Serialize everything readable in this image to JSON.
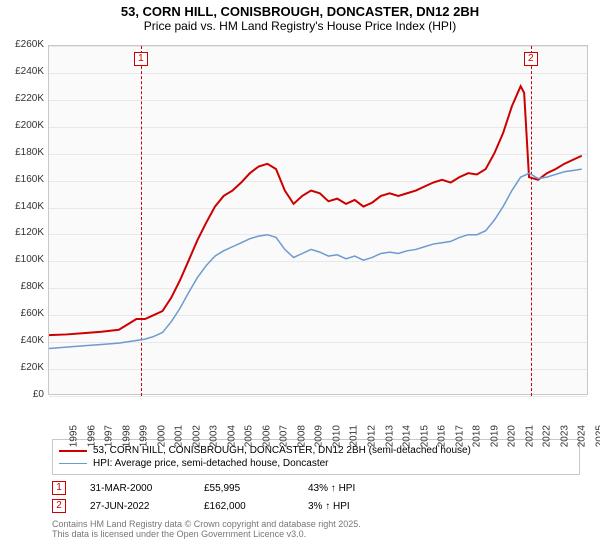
{
  "title": "53, CORN HILL, CONISBROUGH, DONCASTER, DN12 2BH",
  "subtitle": "Price paid vs. HM Land Registry's House Price Index (HPI)",
  "chart": {
    "type": "line",
    "background_color": "#fafafa",
    "grid_color": "#e8e8e8",
    "border_color": "#c8c8c8",
    "title_fontsize": 13,
    "label_fontsize": 10,
    "ylim": [
      0,
      260000
    ],
    "ytick_step": 20000,
    "yticks": [
      "£0",
      "£20K",
      "£40K",
      "£60K",
      "£80K",
      "£100K",
      "£120K",
      "£140K",
      "£160K",
      "£180K",
      "£200K",
      "£220K",
      "£240K",
      "£260K"
    ],
    "xlim": [
      1995,
      2025.8
    ],
    "xticks": [
      1995,
      1996,
      1997,
      1998,
      1999,
      2000,
      2001,
      2002,
      2003,
      2004,
      2005,
      2006,
      2007,
      2008,
      2009,
      2010,
      2011,
      2012,
      2013,
      2014,
      2015,
      2016,
      2017,
      2018,
      2019,
      2020,
      2021,
      2022,
      2023,
      2024,
      2025
    ],
    "series": [
      {
        "name": "53, CORN HILL, CONISBROUGH, DONCASTER, DN12 2BH (semi-detached house)",
        "color": "#cc0000",
        "line_width": 2,
        "points": [
          [
            1995,
            44000
          ],
          [
            1996,
            44500
          ],
          [
            1997,
            45500
          ],
          [
            1998,
            46500
          ],
          [
            1999,
            48000
          ],
          [
            2000,
            55995
          ],
          [
            2000.5,
            56000
          ],
          [
            2001,
            59000
          ],
          [
            2001.5,
            62000
          ],
          [
            2002,
            72000
          ],
          [
            2002.5,
            85000
          ],
          [
            2003,
            100000
          ],
          [
            2003.5,
            115000
          ],
          [
            2004,
            128000
          ],
          [
            2004.5,
            140000
          ],
          [
            2005,
            148000
          ],
          [
            2005.5,
            152000
          ],
          [
            2006,
            158000
          ],
          [
            2006.5,
            165000
          ],
          [
            2007,
            170000
          ],
          [
            2007.5,
            172000
          ],
          [
            2008,
            168000
          ],
          [
            2008.5,
            152000
          ],
          [
            2009,
            142000
          ],
          [
            2009.5,
            148000
          ],
          [
            2010,
            152000
          ],
          [
            2010.5,
            150000
          ],
          [
            2011,
            144000
          ],
          [
            2011.5,
            146000
          ],
          [
            2012,
            142000
          ],
          [
            2012.5,
            145000
          ],
          [
            2013,
            140000
          ],
          [
            2013.5,
            143000
          ],
          [
            2014,
            148000
          ],
          [
            2014.5,
            150000
          ],
          [
            2015,
            148000
          ],
          [
            2015.5,
            150000
          ],
          [
            2016,
            152000
          ],
          [
            2016.5,
            155000
          ],
          [
            2017,
            158000
          ],
          [
            2017.5,
            160000
          ],
          [
            2018,
            158000
          ],
          [
            2018.5,
            162000
          ],
          [
            2019,
            165000
          ],
          [
            2019.5,
            164000
          ],
          [
            2020,
            168000
          ],
          [
            2020.5,
            180000
          ],
          [
            2021,
            195000
          ],
          [
            2021.5,
            215000
          ],
          [
            2022,
            230000
          ],
          [
            2022.2,
            225000
          ],
          [
            2022.48,
            162000
          ],
          [
            2023,
            160000
          ],
          [
            2023.5,
            165000
          ],
          [
            2024,
            168000
          ],
          [
            2024.5,
            172000
          ],
          [
            2025,
            175000
          ],
          [
            2025.5,
            178000
          ]
        ]
      },
      {
        "name": "HPI: Average price, semi-detached house, Doncaster",
        "color": "#6c9bd1",
        "line_width": 1.5,
        "points": [
          [
            1995,
            34000
          ],
          [
            1996,
            35000
          ],
          [
            1997,
            36000
          ],
          [
            1998,
            37000
          ],
          [
            1999,
            38000
          ],
          [
            2000,
            40000
          ],
          [
            2000.5,
            41000
          ],
          [
            2001,
            43000
          ],
          [
            2001.5,
            46000
          ],
          [
            2002,
            54000
          ],
          [
            2002.5,
            64000
          ],
          [
            2003,
            76000
          ],
          [
            2003.5,
            87000
          ],
          [
            2004,
            96000
          ],
          [
            2004.5,
            103000
          ],
          [
            2005,
            107000
          ],
          [
            2005.5,
            110000
          ],
          [
            2006,
            113000
          ],
          [
            2006.5,
            116000
          ],
          [
            2007,
            118000
          ],
          [
            2007.5,
            119000
          ],
          [
            2008,
            117000
          ],
          [
            2008.5,
            108000
          ],
          [
            2009,
            102000
          ],
          [
            2009.5,
            105000
          ],
          [
            2010,
            108000
          ],
          [
            2010.5,
            106000
          ],
          [
            2011,
            103000
          ],
          [
            2011.5,
            104000
          ],
          [
            2012,
            101000
          ],
          [
            2012.5,
            103000
          ],
          [
            2013,
            100000
          ],
          [
            2013.5,
            102000
          ],
          [
            2014,
            105000
          ],
          [
            2014.5,
            106000
          ],
          [
            2015,
            105000
          ],
          [
            2015.5,
            107000
          ],
          [
            2016,
            108000
          ],
          [
            2016.5,
            110000
          ],
          [
            2017,
            112000
          ],
          [
            2017.5,
            113000
          ],
          [
            2018,
            114000
          ],
          [
            2018.5,
            117000
          ],
          [
            2019,
            119000
          ],
          [
            2019.5,
            119000
          ],
          [
            2020,
            122000
          ],
          [
            2020.5,
            130000
          ],
          [
            2021,
            140000
          ],
          [
            2021.5,
            152000
          ],
          [
            2022,
            162000
          ],
          [
            2022.5,
            165000
          ],
          [
            2023,
            161000
          ],
          [
            2023.5,
            162000
          ],
          [
            2024,
            164000
          ],
          [
            2024.5,
            166000
          ],
          [
            2025,
            167000
          ],
          [
            2025.5,
            168000
          ]
        ]
      }
    ],
    "markers": [
      {
        "n": "1",
        "x": 2000.24,
        "date": "31-MAR-2000",
        "price": "£55,995",
        "delta": "43% ↑ HPI"
      },
      {
        "n": "2",
        "x": 2022.48,
        "date": "27-JUN-2022",
        "price": "£162,000",
        "delta": "3% ↑ HPI"
      }
    ],
    "marker_color": "#cc0000"
  },
  "legend_labels": {
    "s0": "53, CORN HILL, CONISBROUGH, DONCASTER, DN12 2BH (semi-detached house)",
    "s1": "HPI: Average price, semi-detached house, Doncaster"
  },
  "attribution": {
    "l1": "Contains HM Land Registry data © Crown copyright and database right 2025.",
    "l2": "This data is licensed under the Open Government Licence v3.0."
  }
}
